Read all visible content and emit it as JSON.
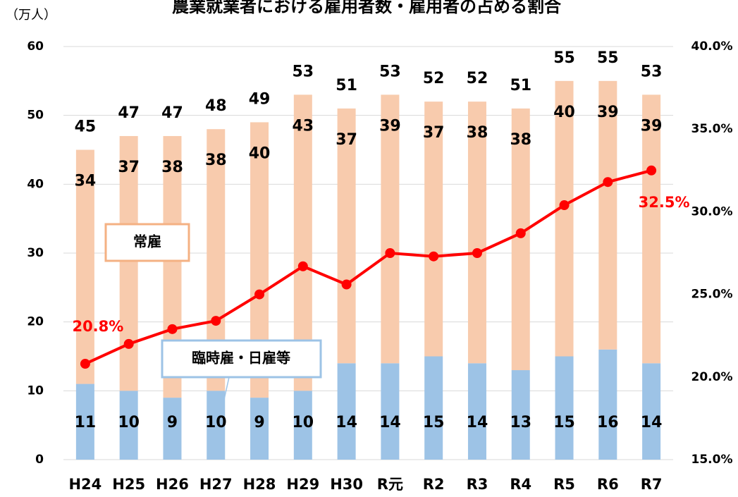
{
  "chart_data": {
    "type": "bar",
    "title": "農業就業者における雇用者数・雇用者の占める割合",
    "y_label": "（万人）",
    "categories": [
      "H24",
      "H25",
      "H26",
      "H27",
      "H28",
      "H29",
      "H30",
      "R元",
      "R2",
      "R3",
      "R4",
      "R5",
      "R6",
      "R7"
    ],
    "stacked": true,
    "series": [
      {
        "name": "臨時雇・日雇等",
        "color": "#9dc3e6",
        "values": [
          11,
          10,
          9,
          10,
          9,
          10,
          14,
          14,
          15,
          14,
          13,
          15,
          16,
          14
        ]
      },
      {
        "name": "常雇",
        "color": "#f8cbad",
        "values": [
          34,
          37,
          38,
          38,
          40,
          43,
          37,
          39,
          37,
          38,
          38,
          40,
          39,
          39
        ]
      },
      {
        "type": "line",
        "axis": "y2",
        "color": "#ff0000",
        "values": [
          20.8,
          22.0,
          22.9,
          23.4,
          25.0,
          26.7,
          25.6,
          27.5,
          27.3,
          27.5,
          28.7,
          30.4,
          31.8,
          32.5
        ],
        "value_labels": [
          "20.8%",
          null,
          null,
          null,
          null,
          null,
          null,
          null,
          null,
          null,
          null,
          null,
          null,
          "32.5%"
        ]
      }
    ],
    "totals": [
      45,
      47,
      47,
      48,
      49,
      53,
      51,
      53,
      52,
      52,
      51,
      55,
      55,
      53
    ],
    "ylim": [
      0,
      60
    ],
    "yticks": [
      0,
      10,
      20,
      30,
      40,
      50,
      60
    ],
    "y2lim": [
      15,
      40
    ],
    "y2ticks": [
      {
        "value": 15,
        "label": "15.0%"
      },
      {
        "value": 20,
        "label": "20.0%"
      },
      {
        "value": 25,
        "label": "25.0%"
      },
      {
        "value": 30,
        "label": "30.0%"
      },
      {
        "value": 35,
        "label": "35.0%"
      },
      {
        "value": 40,
        "label": "40.0%"
      }
    ],
    "grid": true
  }
}
